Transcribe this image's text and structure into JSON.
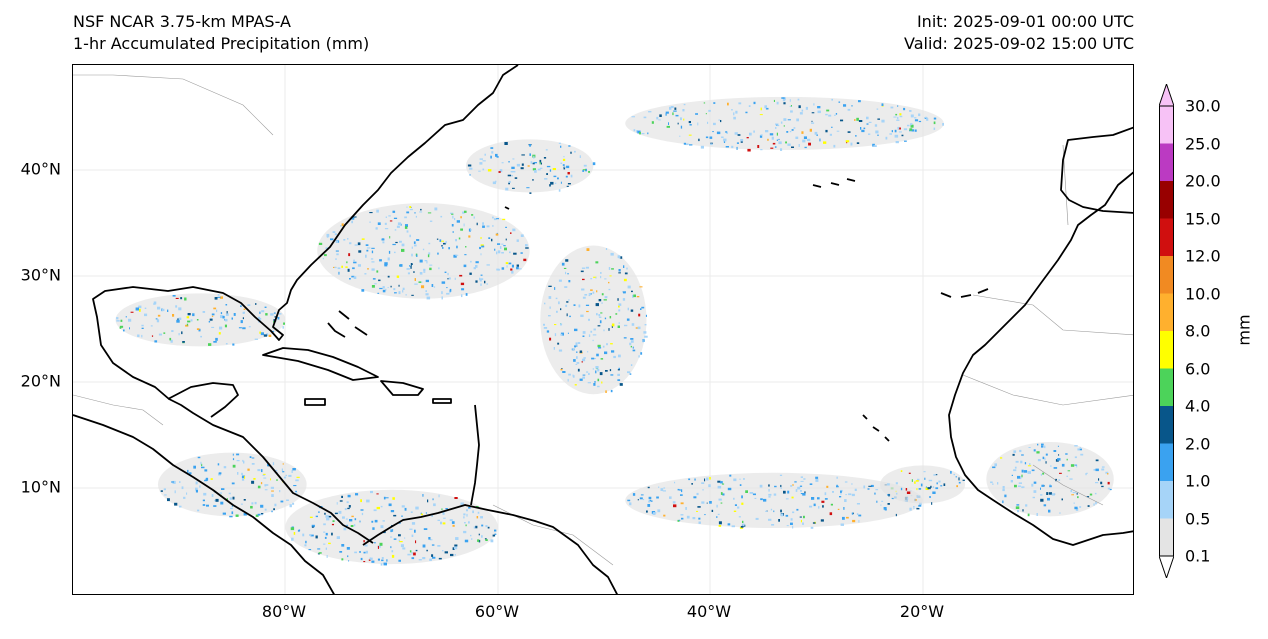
{
  "title": {
    "left_line1": "NSF NCAR 3.75-km MPAS-A",
    "left_line2": "1-hr Accumulated Precipitation (mm)",
    "right_line1": "Init: 2025-09-01 00:00 UTC",
    "right_line2": "Valid: 2025-09-02 15:00 UTC"
  },
  "map": {
    "lat_ticks": [
      "40°N",
      "30°N",
      "20°N",
      "10°N"
    ],
    "lon_ticks": [
      "80°W",
      "60°W",
      "40°W",
      "20°W"
    ],
    "extent": {
      "lon_min": -100,
      "lon_max": 0,
      "lat_min": 0,
      "lat_max": 50
    }
  },
  "colorbar": {
    "units": "mm",
    "levels": [
      "0.1",
      "0.5",
      "1.0",
      "2.0",
      "4.0",
      "6.0",
      "8.0",
      "10.0",
      "12.0",
      "15.0",
      "20.0",
      "25.0",
      "30.0"
    ],
    "colors": [
      "#e4e4e4",
      "#a6d4f8",
      "#3aa2f0",
      "#08568a",
      "#4cd35a",
      "#ffff00",
      "#ffb02e",
      "#f18a22",
      "#d00f0f",
      "#980000",
      "#bb3ac2",
      "#f7c2f6"
    ]
  },
  "precip_regions": [
    {
      "name": "itcz-atlantic",
      "lon": -34,
      "lat": 9.0,
      "rx": 14,
      "ry": 2.6
    },
    {
      "name": "itcz-east",
      "lon": -20,
      "lat": 10.5,
      "rx": 4,
      "ry": 1.8
    },
    {
      "name": "west-africa",
      "lon": -8,
      "lat": 11,
      "rx": 6,
      "ry": 3.5
    },
    {
      "name": "gulf-of-mexico",
      "lon": -88,
      "lat": 26,
      "rx": 8,
      "ry": 2.5
    },
    {
      "name": "central-america",
      "lon": -85,
      "lat": 10.5,
      "rx": 7,
      "ry": 3
    },
    {
      "name": "western-atlantic",
      "lon": -67,
      "lat": 32.5,
      "rx": 10,
      "ry": 4.5
    },
    {
      "name": "north-atlantic-band",
      "lon": -33,
      "lat": 44.5,
      "rx": 15,
      "ry": 2.5
    },
    {
      "name": "central-atlantic",
      "lon": -51,
      "lat": 26,
      "rx": 5,
      "ry": 7
    },
    {
      "name": "south-america-north",
      "lon": -70,
      "lat": 6.5,
      "rx": 10,
      "ry": 3.5
    },
    {
      "name": "northeast-us-offshore",
      "lon": -57,
      "lat": 40.5,
      "rx": 6,
      "ry": 2.5
    }
  ]
}
